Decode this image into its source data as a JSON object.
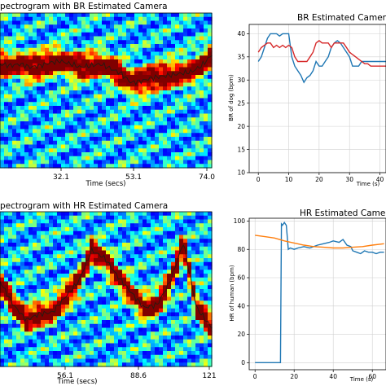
{
  "chart_data": [
    {
      "id": "br_spectrogram",
      "type": "heatmap",
      "title": "pectrogram with BR Estimated Camera",
      "xlabel": "Time (secs)",
      "xticks": [
        "32.1",
        "53.1",
        "74.0"
      ],
      "x": [
        11,
        14,
        17,
        20,
        23,
        26,
        29,
        32,
        35,
        38,
        41,
        44,
        47,
        50,
        53,
        56,
        59,
        62,
        65,
        68,
        71,
        74
      ],
      "ridge_y": [
        0.33,
        0.34,
        0.33,
        0.35,
        0.34,
        0.32,
        0.31,
        0.33,
        0.35,
        0.34,
        0.33,
        0.36,
        0.39,
        0.45,
        0.44,
        0.42,
        0.41,
        0.4,
        0.39,
        0.38,
        0.34,
        0.27
      ],
      "ridge_note": "ridge_y expressed as fraction of panel height from top"
    },
    {
      "id": "br_timeseries",
      "type": "line",
      "title": "BR Estimated Camera and",
      "xlabel": "Time (s)",
      "ylabel": "BR of dog (bpm)",
      "xlim": [
        -3,
        42
      ],
      "ylim": [
        10,
        42
      ],
      "xticks": [
        0,
        10,
        20,
        30,
        40
      ],
      "yticks": [
        10,
        15,
        20,
        25,
        30,
        35,
        40
      ],
      "grid": true,
      "series": [
        {
          "color": "#1f77b4",
          "x": [
            0,
            1,
            2,
            3,
            4,
            5,
            6,
            7,
            8,
            9,
            10,
            11,
            12,
            13,
            14,
            15,
            16,
            17,
            18,
            19,
            20,
            21,
            22,
            23,
            24,
            25,
            26,
            27,
            28,
            29,
            30,
            31,
            32,
            33,
            34,
            35,
            36,
            37,
            38,
            39,
            40,
            41,
            42
          ],
          "y": [
            34,
            35,
            37,
            39,
            40,
            40,
            40,
            39.5,
            40,
            40,
            40,
            35,
            33,
            32,
            31,
            29.5,
            30.5,
            31,
            32,
            34,
            33,
            33,
            34,
            35,
            37,
            38,
            38.5,
            38,
            37,
            36,
            35,
            33,
            33,
            33,
            34,
            34,
            34,
            34,
            34,
            34,
            34,
            34,
            34
          ]
        },
        {
          "color": "#d62728",
          "x": [
            0,
            1,
            2,
            3,
            4,
            5,
            6,
            7,
            8,
            9,
            10,
            11,
            12,
            13,
            14,
            15,
            16,
            17,
            18,
            19,
            20,
            21,
            22,
            23,
            24,
            25,
            26,
            27,
            28,
            29,
            30,
            31,
            32,
            33,
            34,
            35,
            36,
            37,
            38,
            39,
            40,
            41,
            42
          ],
          "y": [
            36,
            37,
            37.5,
            38,
            38,
            37,
            37.5,
            37,
            37.5,
            37,
            37.5,
            37,
            35,
            34,
            34,
            34,
            34,
            35,
            36,
            38,
            38.5,
            38,
            38,
            38,
            37,
            38,
            38,
            38,
            38,
            37,
            36,
            35.5,
            35,
            34.5,
            34,
            33.5,
            33.5,
            33,
            33,
            33,
            33,
            33,
            33
          ]
        }
      ]
    },
    {
      "id": "hr_spectrogram",
      "type": "heatmap",
      "title": "pectrogram with HR Estimated Camera",
      "xlabel": "Time (secs)",
      "xticks": [
        "56.1",
        "88.6",
        "121"
      ],
      "x": [
        24,
        30,
        36,
        42,
        48,
        54,
        60,
        66,
        72,
        78,
        84,
        90,
        96,
        102,
        108,
        114,
        121
      ],
      "ridge_y": [
        0.45,
        0.6,
        0.7,
        0.66,
        0.65,
        0.55,
        0.45,
        0.25,
        0.3,
        0.42,
        0.52,
        0.62,
        0.6,
        0.45,
        0.2,
        0.62,
        0.75
      ],
      "ridge_note": "ridge_y expressed as fraction of panel height from top"
    },
    {
      "id": "hr_timeseries",
      "type": "line",
      "title": "HR Estimated Camera and",
      "xlabel": "Time (s)",
      "ylabel": "HR of human (bpm)",
      "xlim": [
        -3,
        67
      ],
      "ylim": [
        -5,
        102
      ],
      "xticks": [
        0,
        20,
        40,
        60
      ],
      "yticks": [
        0,
        20,
        40,
        60,
        80,
        100
      ],
      "grid": true,
      "series": [
        {
          "color": "#1f77b4",
          "x": [
            0,
            12,
            13,
            13.5,
            14,
            15,
            16,
            17,
            18,
            20,
            22,
            25,
            28,
            30,
            32,
            35,
            38,
            40,
            43,
            45,
            47,
            49,
            50,
            52,
            54,
            56,
            58,
            60,
            62,
            64,
            66
          ],
          "y": [
            0,
            0,
            0,
            98,
            97,
            99,
            97,
            80,
            81,
            80,
            81,
            82,
            81,
            82,
            83,
            84,
            85,
            86,
            85,
            87,
            83,
            82,
            79,
            78,
            77,
            79,
            78,
            78,
            77,
            78,
            78
          ]
        },
        {
          "color": "#ff7f0e",
          "x": [
            0,
            5,
            10,
            15,
            20,
            25,
            30,
            35,
            40,
            45,
            50,
            55,
            60,
            66
          ],
          "y": [
            90,
            89,
            88,
            86,
            84.5,
            83,
            82,
            81.5,
            81,
            81,
            81.5,
            82,
            83,
            84
          ]
        }
      ]
    }
  ]
}
